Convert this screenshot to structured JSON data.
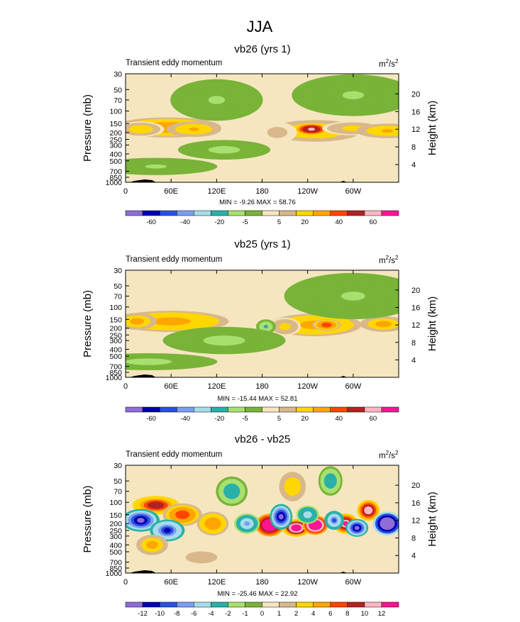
{
  "main_title": "JJA",
  "chart_data": [
    {
      "type": "heatmap",
      "title": "vb26 (yrs 1)",
      "subtitle_left": "Transient eddy momentum",
      "units_base": "m",
      "units_exp1": "2",
      "units_mid": "/s",
      "units_exp2": "2",
      "ylabel": "Pressure (mb)",
      "ylabel_right": "Height (km)",
      "x_ticks": [
        "0",
        "60E",
        "120E",
        "180",
        "120W",
        "60W"
      ],
      "y_ticks": [
        "30",
        "50",
        "70",
        "100",
        "150",
        "200",
        "250",
        "300",
        "400",
        "500",
        "700",
        "850",
        "1000"
      ],
      "y_right_ticks": [
        "4",
        "8",
        "12",
        "16",
        "20"
      ],
      "stats": "MIN = -9.26  MAX = 58.76",
      "colorbar_labels": [
        "-60",
        "-40",
        "-20",
        "-5",
        "5",
        "20",
        "40",
        "60"
      ],
      "min": -9.26,
      "max": 58.76,
      "blobs": [
        {
          "lon": 55,
          "p": 170,
          "rx": 70,
          "ry": 50,
          "val": 30
        },
        {
          "lon": 90,
          "p": 180,
          "rx": 35,
          "ry": 40,
          "val": 22
        },
        {
          "lon": 20,
          "p": 180,
          "rx": 30,
          "ry": 40,
          "val": 18
        },
        {
          "lon": 250,
          "p": 190,
          "rx": 60,
          "ry": 60,
          "val": 22
        },
        {
          "lon": 245,
          "p": 180,
          "rx": 22,
          "ry": 30,
          "val": 58
        },
        {
          "lon": 300,
          "p": 175,
          "rx": 40,
          "ry": 35,
          "val": 14
        },
        {
          "lon": 345,
          "p": 190,
          "rx": 40,
          "ry": 40,
          "val": 22
        },
        {
          "lon": 200,
          "p": 200,
          "rx": 25,
          "ry": 60,
          "val": 8
        },
        {
          "lon": 120,
          "p": 70,
          "rx": 60,
          "ry": 40,
          "val": -5
        },
        {
          "lon": 300,
          "p": 60,
          "rx": 80,
          "ry": 50,
          "val": -5
        },
        {
          "lon": 130,
          "p": 350,
          "rx": 60,
          "ry": 100,
          "val": -6
        },
        {
          "lon": 40,
          "p": 600,
          "rx": 80,
          "ry": 150,
          "val": -5
        }
      ]
    },
    {
      "type": "heatmap",
      "title": "vb25 (yrs 1)",
      "subtitle_left": "Transient eddy momentum",
      "units_base": "m",
      "units_exp1": "2",
      "units_mid": "/s",
      "units_exp2": "2",
      "ylabel": "Pressure (mb)",
      "ylabel_right": "Height (km)",
      "x_ticks": [
        "0",
        "60E",
        "120E",
        "180",
        "120W",
        "60W"
      ],
      "y_ticks": [
        "30",
        "50",
        "70",
        "100",
        "150",
        "200",
        "250",
        "300",
        "400",
        "500",
        "700",
        "850",
        "1000"
      ],
      "y_right_ticks": [
        "4",
        "8",
        "12",
        "16",
        "20"
      ],
      "stats": "MIN = -15.44  MAX = 52.81",
      "colorbar_labels": [
        "-60",
        "-40",
        "-20",
        "-5",
        "5",
        "20",
        "40",
        "60"
      ],
      "min": -15.44,
      "max": 52.81,
      "blobs": [
        {
          "lon": 60,
          "p": 160,
          "rx": 75,
          "ry": 50,
          "val": 28
        },
        {
          "lon": 15,
          "p": 160,
          "rx": 25,
          "ry": 40,
          "val": 24
        },
        {
          "lon": 250,
          "p": 180,
          "rx": 60,
          "ry": 60,
          "val": 28
        },
        {
          "lon": 265,
          "p": 180,
          "rx": 18,
          "ry": 30,
          "val": 40
        },
        {
          "lon": 340,
          "p": 175,
          "rx": 30,
          "ry": 40,
          "val": 24
        },
        {
          "lon": 210,
          "p": 190,
          "rx": 20,
          "ry": 50,
          "val": 14
        },
        {
          "lon": 185,
          "p": 190,
          "rx": 12,
          "ry": 40,
          "val": -10
        },
        {
          "lon": 300,
          "p": 70,
          "rx": 90,
          "ry": 60,
          "val": -5
        },
        {
          "lon": 130,
          "p": 300,
          "rx": 80,
          "ry": 120,
          "val": -6
        },
        {
          "lon": 30,
          "p": 600,
          "rx": 90,
          "ry": 150,
          "val": -6
        }
      ]
    },
    {
      "type": "heatmap",
      "title": "vb26 - vb25",
      "subtitle_left": "Transient eddy momentum",
      "units_base": "m",
      "units_exp1": "2",
      "units_mid": "/s",
      "units_exp2": "2",
      "ylabel": "Pressure (mb)",
      "ylabel_right": "Height (km)",
      "x_ticks": [
        "0",
        "60E",
        "120E",
        "180",
        "120W",
        "60W"
      ],
      "y_ticks": [
        "30",
        "50",
        "70",
        "100",
        "150",
        "200",
        "250",
        "300",
        "400",
        "500",
        "700",
        "850",
        "1000"
      ],
      "y_right_ticks": [
        "4",
        "8",
        "12",
        "16",
        "20"
      ],
      "stats": "MIN = -25.46  MAX = 22.92",
      "colorbar_labels": [
        "-12",
        "-10",
        "-8",
        "-6",
        "-4",
        "-2",
        "-1",
        "0",
        "1",
        "2",
        "4",
        "6",
        "8",
        "10",
        "12"
      ],
      "min": -25.46,
      "max": 22.92,
      "blobs": [
        {
          "lon": 190,
          "p": 210,
          "rx": 18,
          "ry": 70,
          "val": 18
        },
        {
          "lon": 225,
          "p": 230,
          "rx": 18,
          "ry": 60,
          "val": 15
        },
        {
          "lon": 250,
          "p": 210,
          "rx": 16,
          "ry": 60,
          "val": 20
        },
        {
          "lon": 290,
          "p": 200,
          "rx": 16,
          "ry": 60,
          "val": 14
        },
        {
          "lon": 320,
          "p": 130,
          "rx": 14,
          "ry": 40,
          "val": 12
        },
        {
          "lon": 40,
          "p": 110,
          "rx": 30,
          "ry": 30,
          "val": 10
        },
        {
          "lon": 75,
          "p": 150,
          "rx": 25,
          "ry": 50,
          "val": 8
        },
        {
          "lon": 115,
          "p": 200,
          "rx": 20,
          "ry": 70,
          "val": 6
        },
        {
          "lon": 160,
          "p": 200,
          "rx": 16,
          "ry": 60,
          "val": -6
        },
        {
          "lon": 205,
          "p": 160,
          "rx": 14,
          "ry": 60,
          "val": -12
        },
        {
          "lon": 240,
          "p": 150,
          "rx": 14,
          "ry": 40,
          "val": -5
        },
        {
          "lon": 275,
          "p": 180,
          "rx": 12,
          "ry": 50,
          "val": -8
        },
        {
          "lon": 305,
          "p": 230,
          "rx": 14,
          "ry": 60,
          "val": -14
        },
        {
          "lon": 345,
          "p": 200,
          "rx": 18,
          "ry": 70,
          "val": -20
        },
        {
          "lon": 20,
          "p": 180,
          "rx": 24,
          "ry": 60,
          "val": -14
        },
        {
          "lon": 55,
          "p": 250,
          "rx": 22,
          "ry": 80,
          "val": -10
        },
        {
          "lon": 35,
          "p": 400,
          "rx": 20,
          "ry": 120,
          "val": 5
        },
        {
          "lon": 140,
          "p": 70,
          "rx": 20,
          "ry": 30,
          "val": -3
        },
        {
          "lon": 220,
          "p": 60,
          "rx": 20,
          "ry": 30,
          "val": 3
        },
        {
          "lon": 270,
          "p": 50,
          "rx": 15,
          "ry": 25,
          "val": -3
        },
        {
          "lon": 100,
          "p": 600,
          "rx": 30,
          "ry": 150,
          "val": 2
        }
      ]
    }
  ],
  "colors": {
    "diverging": [
      "#8f6cd6",
      "#0000b4",
      "#2b50e0",
      "#7a9df0",
      "#a6dcea",
      "#2ab0a8",
      "#a8e070",
      "#79b338",
      "#f5e6c0",
      "#d8b88a",
      "#ffd700",
      "#ffa500",
      "#ff4500",
      "#b22222",
      "#ffb6c1",
      "#ff1493"
    ],
    "background_contour": "#f5e6c0",
    "land": "#000000"
  }
}
